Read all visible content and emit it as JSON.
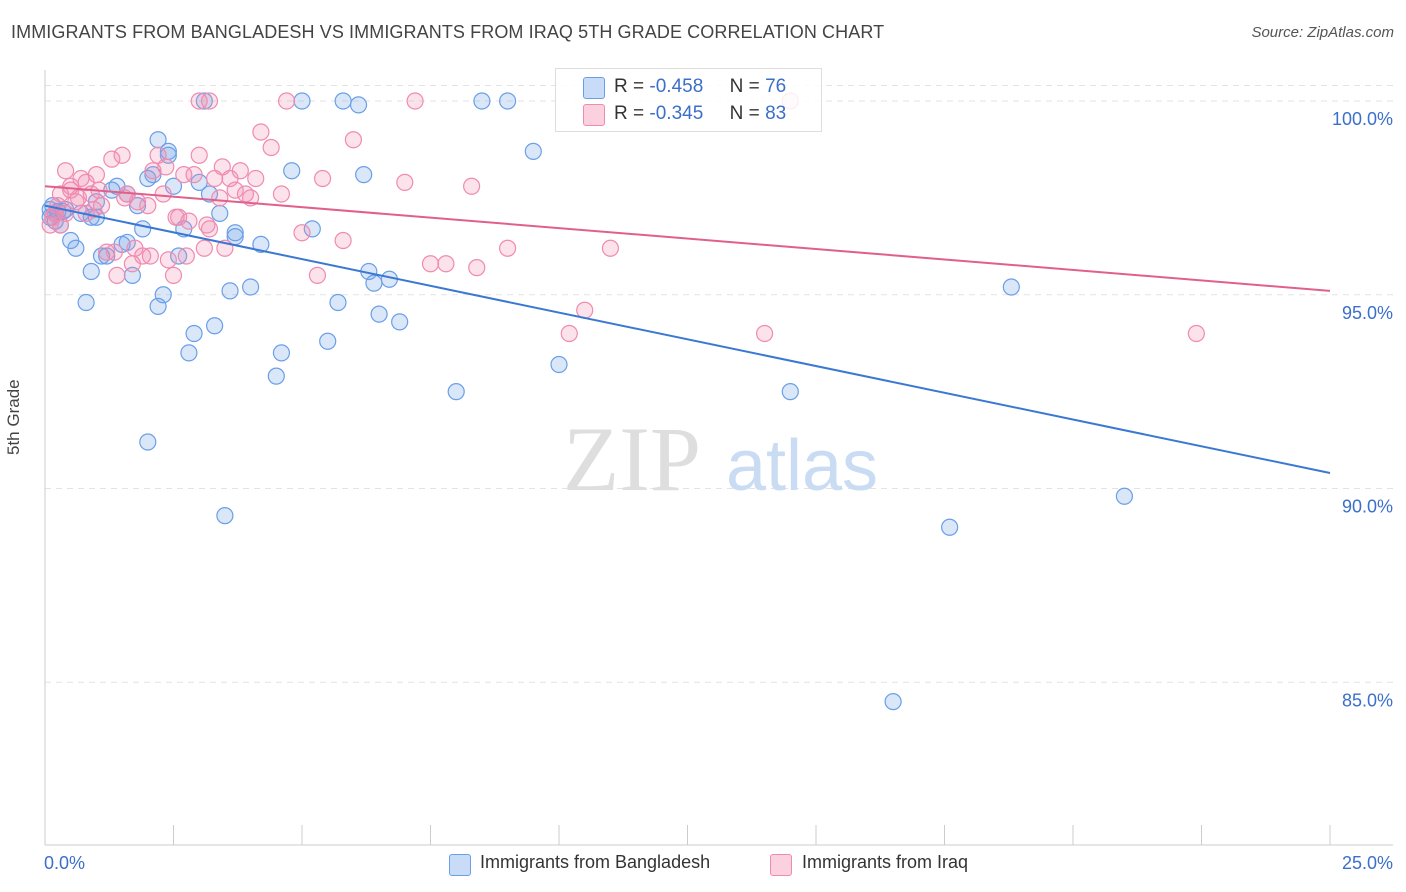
{
  "title": "IMMIGRANTS FROM BANGLADESH VS IMMIGRANTS FROM IRAQ 5TH GRADE CORRELATION CHART",
  "source": "Source: ZipAtlas.com",
  "watermark": {
    "zip": "ZIP",
    "atlas": "atlas"
  },
  "colors": {
    "bangladesh": "#6a9fe8",
    "bangladesh_line": "#3a78d4",
    "iraq": "#f08bb0",
    "iraq_line": "#e0608c",
    "tick_label": "#3b6fc9"
  },
  "legend": {
    "rows": [
      {
        "r_label": "R =",
        "r_value": "-0.458",
        "n_label": "N =",
        "n_value": "76"
      },
      {
        "r_label": "R =",
        "r_value": "-0.345",
        "n_label": "N =",
        "n_value": "83"
      }
    ]
  },
  "chart_data": {
    "type": "scatter",
    "xlabel": "",
    "ylabel": "5th Grade",
    "xlim": [
      0,
      25
    ],
    "ylim": [
      80.8,
      100.8
    ],
    "x_tick_labels": [
      "0.0%",
      "25.0%"
    ],
    "y_ticks": [
      85,
      90,
      95,
      100
    ],
    "y_tick_labels": [
      "85.0%",
      "90.0%",
      "95.0%",
      "100.0%"
    ],
    "grid": true,
    "legend_position": "top-center",
    "series": [
      {
        "name": "Immigrants from Bangladesh",
        "trend": {
          "x": [
            0,
            25
          ],
          "y": [
            97.3,
            90.4
          ]
        },
        "points": [
          [
            0.1,
            97.0
          ],
          [
            0.15,
            97.3
          ],
          [
            0.2,
            97.1
          ],
          [
            0.3,
            96.8
          ],
          [
            0.4,
            97.2
          ],
          [
            0.5,
            96.4
          ],
          [
            0.6,
            96.2
          ],
          [
            0.7,
            97.1
          ],
          [
            0.8,
            94.8
          ],
          [
            0.9,
            95.6
          ],
          [
            1.0,
            97.4
          ],
          [
            1.1,
            96.0
          ],
          [
            1.3,
            97.7
          ],
          [
            1.4,
            97.8
          ],
          [
            1.5,
            96.3
          ],
          [
            1.6,
            97.6
          ],
          [
            1.7,
            95.5
          ],
          [
            1.8,
            97.3
          ],
          [
            1.9,
            96.7
          ],
          [
            2.0,
            91.2
          ],
          [
            2.1,
            98.1
          ],
          [
            2.2,
            94.7
          ],
          [
            2.3,
            95.0
          ],
          [
            2.4,
            98.7
          ],
          [
            2.5,
            97.8
          ],
          [
            2.6,
            96.0
          ],
          [
            2.7,
            96.7
          ],
          [
            2.8,
            93.5
          ],
          [
            2.9,
            94.0
          ],
          [
            3.0,
            97.9
          ],
          [
            3.1,
            100.0
          ],
          [
            3.2,
            97.6
          ],
          [
            3.3,
            94.2
          ],
          [
            3.4,
            97.1
          ],
          [
            3.5,
            89.3
          ],
          [
            3.6,
            95.1
          ],
          [
            3.7,
            96.6
          ],
          [
            4.0,
            95.2
          ],
          [
            4.2,
            96.3
          ],
          [
            4.5,
            92.9
          ],
          [
            4.6,
            93.5
          ],
          [
            4.8,
            98.2
          ],
          [
            5.0,
            100.0
          ],
          [
            5.2,
            96.7
          ],
          [
            5.5,
            93.8
          ],
          [
            5.7,
            94.8
          ],
          [
            5.8,
            100.0
          ],
          [
            6.2,
            98.1
          ],
          [
            6.1,
            99.9
          ],
          [
            6.3,
            95.6
          ],
          [
            6.5,
            94.5
          ],
          [
            6.7,
            95.4
          ],
          [
            6.9,
            94.3
          ],
          [
            8.0,
            92.5
          ],
          [
            8.5,
            100.0
          ],
          [
            9.0,
            100.0
          ],
          [
            9.5,
            98.7
          ],
          [
            10.0,
            93.2
          ],
          [
            14.5,
            92.5
          ],
          [
            17.6,
            89.0
          ],
          [
            18.8,
            95.2
          ],
          [
            21.0,
            89.8
          ],
          [
            16.5,
            84.5
          ],
          [
            0.2,
            96.9
          ],
          [
            0.35,
            97.15
          ],
          [
            0.9,
            97.0
          ],
          [
            1.6,
            96.35
          ],
          [
            3.7,
            96.5
          ],
          [
            2.4,
            98.6
          ],
          [
            0.1,
            97.2
          ],
          [
            0.25,
            97.15
          ],
          [
            1.0,
            97.0
          ],
          [
            6.4,
            95.3
          ],
          [
            2.2,
            99.0
          ],
          [
            2.0,
            98.0
          ],
          [
            1.2,
            96.0
          ]
        ]
      },
      {
        "name": "Immigrants from Iraq",
        "trend": {
          "x": [
            0,
            25
          ],
          "y": [
            97.8,
            95.1
          ]
        },
        "points": [
          [
            0.1,
            96.8
          ],
          [
            0.2,
            97.1
          ],
          [
            0.3,
            97.6
          ],
          [
            0.4,
            98.2
          ],
          [
            0.5,
            97.8
          ],
          [
            0.6,
            97.4
          ],
          [
            0.7,
            98.0
          ],
          [
            0.8,
            97.1
          ],
          [
            0.9,
            97.6
          ],
          [
            1.0,
            98.1
          ],
          [
            1.1,
            97.3
          ],
          [
            1.2,
            96.1
          ],
          [
            1.3,
            98.5
          ],
          [
            1.4,
            95.5
          ],
          [
            1.5,
            98.6
          ],
          [
            1.6,
            97.6
          ],
          [
            1.7,
            95.8
          ],
          [
            1.8,
            97.4
          ],
          [
            1.9,
            96.0
          ],
          [
            2.0,
            97.3
          ],
          [
            2.1,
            98.2
          ],
          [
            2.2,
            98.6
          ],
          [
            2.3,
            97.6
          ],
          [
            2.4,
            95.9
          ],
          [
            2.5,
            95.5
          ],
          [
            2.6,
            97.0
          ],
          [
            2.7,
            98.1
          ],
          [
            2.8,
            96.9
          ],
          [
            2.9,
            98.1
          ],
          [
            3.0,
            98.6
          ],
          [
            3.1,
            96.2
          ],
          [
            3.2,
            96.7
          ],
          [
            3.3,
            98.0
          ],
          [
            3.4,
            97.5
          ],
          [
            3.5,
            96.2
          ],
          [
            3.6,
            98.0
          ],
          [
            3.7,
            97.7
          ],
          [
            3.8,
            98.2
          ],
          [
            4.0,
            97.5
          ],
          [
            4.2,
            99.2
          ],
          [
            4.4,
            98.8
          ],
          [
            4.6,
            97.6
          ],
          [
            5.0,
            96.6
          ],
          [
            5.3,
            95.5
          ],
          [
            5.4,
            98.0
          ],
          [
            5.8,
            96.4
          ],
          [
            6.0,
            99.0
          ],
          [
            7.0,
            97.9
          ],
          [
            7.2,
            100.0
          ],
          [
            7.5,
            95.8
          ],
          [
            7.8,
            95.8
          ],
          [
            8.3,
            97.8
          ],
          [
            8.4,
            95.7
          ],
          [
            9.0,
            96.2
          ],
          [
            10.2,
            94.0
          ],
          [
            10.5,
            94.6
          ],
          [
            11.0,
            96.2
          ],
          [
            14.0,
            94.0
          ],
          [
            22.4,
            94.0
          ],
          [
            3.0,
            100.0
          ],
          [
            3.2,
            100.0
          ],
          [
            4.7,
            100.0
          ],
          [
            14.5,
            100.0
          ],
          [
            0.15,
            97.0
          ],
          [
            0.25,
            97.3
          ],
          [
            0.4,
            97.1
          ],
          [
            0.5,
            97.7
          ],
          [
            0.65,
            97.5
          ],
          [
            0.8,
            97.9
          ],
          [
            0.95,
            97.2
          ],
          [
            1.05,
            97.7
          ],
          [
            1.35,
            96.1
          ],
          [
            1.55,
            97.5
          ],
          [
            1.75,
            96.2
          ],
          [
            2.05,
            96.0
          ],
          [
            2.35,
            98.3
          ],
          [
            2.55,
            97.0
          ],
          [
            2.75,
            96.0
          ],
          [
            3.15,
            96.8
          ],
          [
            3.45,
            98.3
          ],
          [
            3.9,
            97.6
          ],
          [
            4.1,
            98.0
          ],
          [
            0.3,
            96.8
          ]
        ]
      }
    ]
  }
}
